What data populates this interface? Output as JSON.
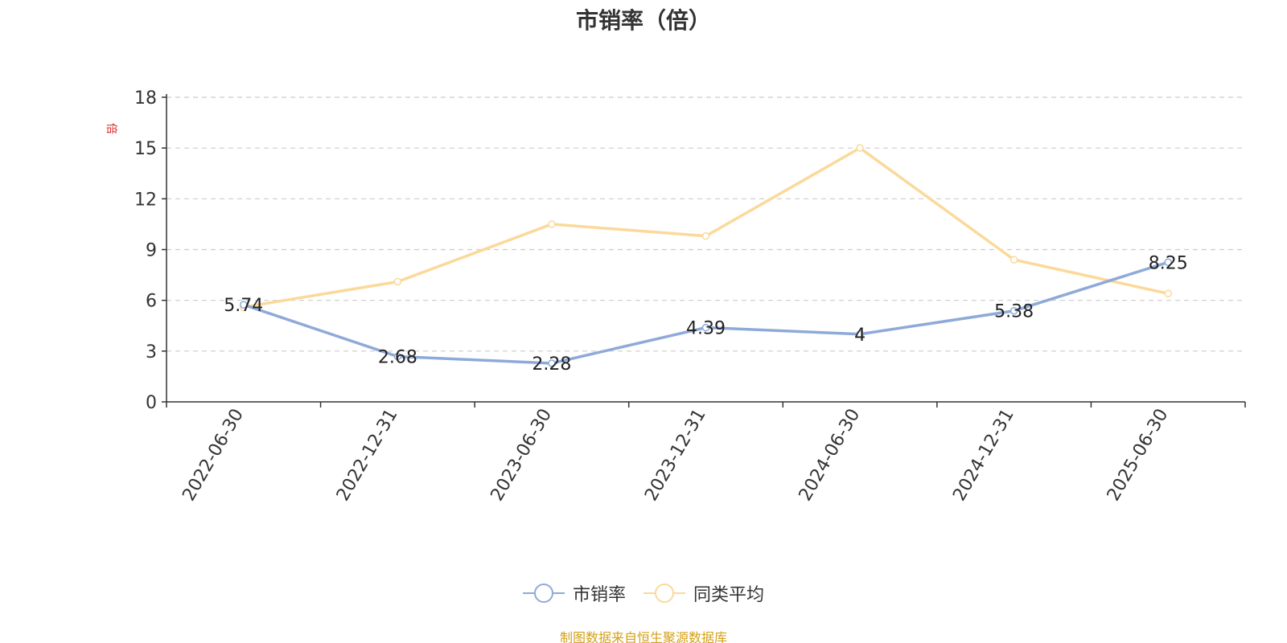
{
  "chart_data": {
    "type": "line",
    "title": "市销率（倍）",
    "y_unit_label": "倍",
    "categories": [
      "2022-06-30",
      "2022-12-31",
      "2023-06-30",
      "2023-12-31",
      "2024-06-30",
      "2024-12-31",
      "2025-06-30"
    ],
    "ylim": [
      0,
      18
    ],
    "yticks": [
      "0",
      "3",
      "6",
      "9",
      "12",
      "15",
      "18"
    ],
    "grid": true,
    "legend_position": "bottom",
    "series": [
      {
        "name": "市销率",
        "color": "#8eaad8",
        "values": [
          5.74,
          2.68,
          2.28,
          4.39,
          4.0,
          5.38,
          8.25
        ],
        "value_labels": [
          "5.74",
          "2.68",
          "2.28",
          "4.39",
          "4",
          "5.38",
          "8.25"
        ]
      },
      {
        "name": "同类平均",
        "color": "#fbd99a",
        "values": [
          5.6,
          7.1,
          10.5,
          9.8,
          15.0,
          8.4,
          6.4
        ]
      }
    ]
  },
  "footer": "制图数据来自恒生聚源数据库"
}
